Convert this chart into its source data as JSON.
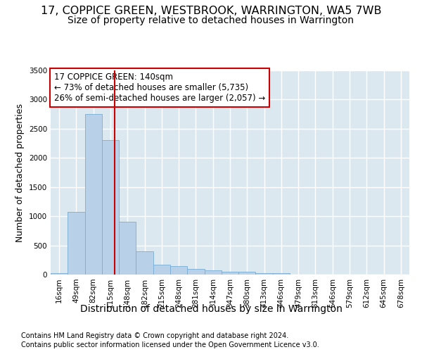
{
  "title": "17, COPPICE GREEN, WESTBROOK, WARRINGTON, WA5 7WB",
  "subtitle": "Size of property relative to detached houses in Warrington",
  "xlabel": "Distribution of detached houses by size in Warrington",
  "ylabel": "Number of detached properties",
  "categories": [
    "16sqm",
    "49sqm",
    "82sqm",
    "115sqm",
    "148sqm",
    "182sqm",
    "215sqm",
    "248sqm",
    "281sqm",
    "314sqm",
    "347sqm",
    "380sqm",
    "413sqm",
    "446sqm",
    "479sqm",
    "513sqm",
    "546sqm",
    "579sqm",
    "612sqm",
    "645sqm",
    "678sqm"
  ],
  "values": [
    25,
    1075,
    2750,
    2300,
    900,
    400,
    175,
    150,
    100,
    75,
    50,
    50,
    30,
    20,
    5,
    5,
    3,
    2,
    1,
    1,
    0
  ],
  "bar_color": "#b8d0e8",
  "bar_edge_color": "#7aadd4",
  "background_color": "#dce8f0",
  "grid_color": "#ffffff",
  "vline_color": "#cc0000",
  "annotation_line1": "17 COPPICE GREEN: 140sqm",
  "annotation_line2": "← 73% of detached houses are smaller (5,735)",
  "annotation_line3": "26% of semi-detached houses are larger (2,057) →",
  "annotation_box_color": "#ffffff",
  "annotation_box_edge": "#cc0000",
  "footnote1": "Contains HM Land Registry data © Crown copyright and database right 2024.",
  "footnote2": "Contains public sector information licensed under the Open Government Licence v3.0.",
  "ylim": [
    0,
    3500
  ],
  "yticks": [
    0,
    500,
    1000,
    1500,
    2000,
    2500,
    3000,
    3500
  ],
  "title_fontsize": 11.5,
  "subtitle_fontsize": 10,
  "xlabel_fontsize": 10,
  "ylabel_fontsize": 9,
  "tick_fontsize": 7.5,
  "annot_fontsize": 8.5,
  "footnote_fontsize": 7
}
